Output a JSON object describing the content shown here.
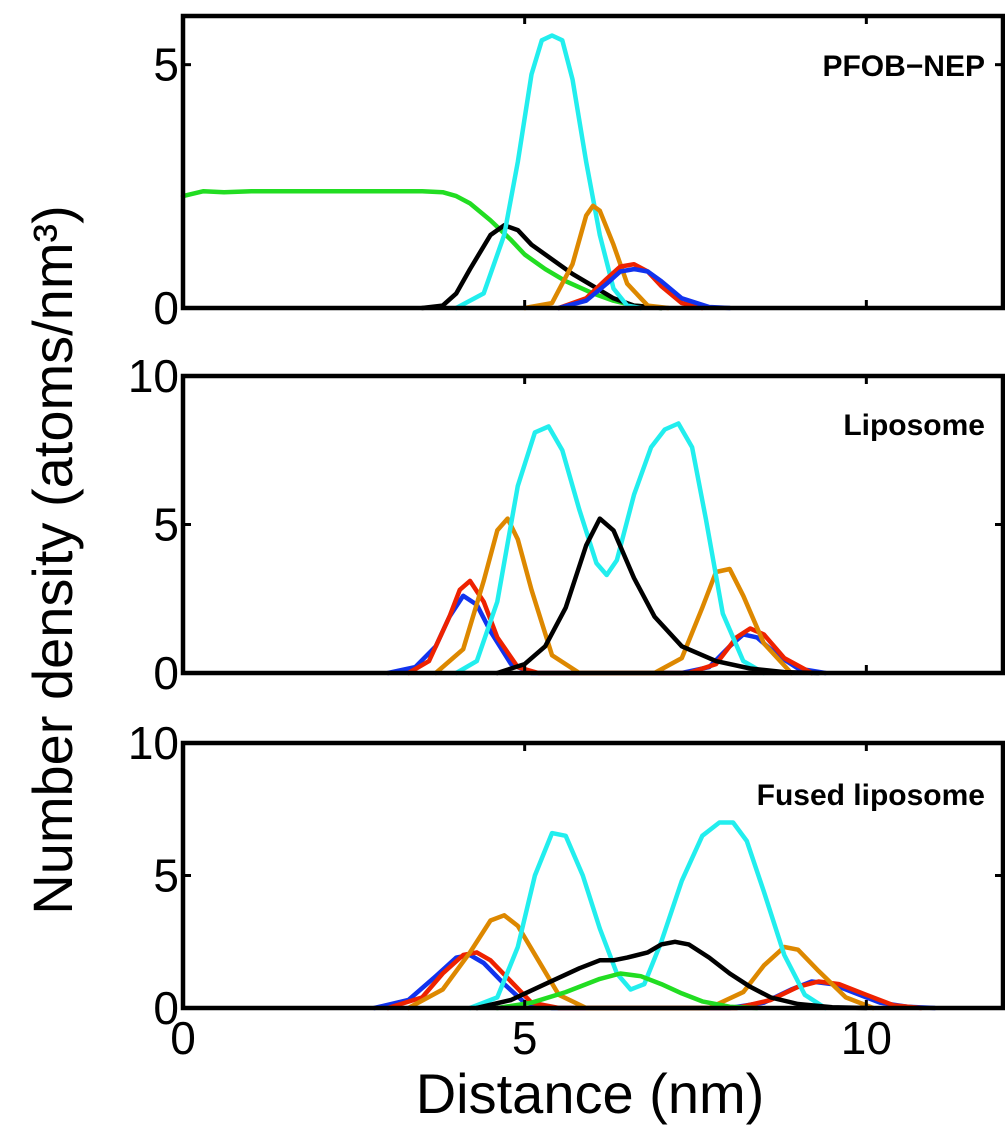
{
  "chart_data": {
    "type": "line",
    "shared_xlabel": "Distance (nm)",
    "shared_ylabel": "Number density (atoms/nm³)",
    "xlim": [
      0,
      12
    ],
    "xticks": [
      0,
      5,
      10
    ],
    "grid": false,
    "colors": {
      "green": "#22dd22",
      "black": "#000000",
      "cyan": "#22eeee",
      "orange": "#dd8800",
      "red": "#ee2200",
      "blue": "#1133ee"
    },
    "panels": [
      {
        "title": "PFOB−NEP",
        "ylim": [
          0,
          6
        ],
        "yticks": [
          0,
          5
        ],
        "series": [
          {
            "color_key": "green",
            "x": [
              0,
              0.3,
              0.6,
              1,
              2,
              3,
              3.5,
              3.8,
              4,
              4.2,
              4.5,
              4.8,
              5,
              5.3,
              5.6,
              6,
              6.3,
              6.6,
              7
            ],
            "y": [
              2.3,
              2.4,
              2.38,
              2.4,
              2.4,
              2.4,
              2.4,
              2.38,
              2.3,
              2.15,
              1.8,
              1.4,
              1.1,
              0.8,
              0.55,
              0.3,
              0.15,
              0.05,
              0
            ]
          },
          {
            "color_key": "black",
            "x": [
              3.5,
              3.8,
              4,
              4.2,
              4.5,
              4.7,
              4.9,
              5.1,
              5.4,
              5.7,
              6,
              6.3,
              6.6,
              7
            ],
            "y": [
              0,
              0.05,
              0.3,
              0.8,
              1.5,
              1.7,
              1.6,
              1.3,
              1,
              0.7,
              0.45,
              0.2,
              0.05,
              0
            ]
          },
          {
            "color_key": "cyan",
            "x": [
              4,
              4.4,
              4.7,
              4.9,
              5.1,
              5.25,
              5.4,
              5.55,
              5.7,
              5.9,
              6.1,
              6.3,
              6.5,
              6.7
            ],
            "y": [
              0,
              0.3,
              1.5,
              3,
              4.8,
              5.5,
              5.6,
              5.5,
              4.7,
              3,
              1.5,
              0.4,
              0.05,
              0
            ]
          },
          {
            "color_key": "orange",
            "x": [
              5,
              5.4,
              5.7,
              5.9,
              6,
              6.1,
              6.3,
              6.5,
              6.8,
              7.1
            ],
            "y": [
              0,
              0.1,
              0.9,
              1.9,
              2.1,
              2.0,
              1.3,
              0.5,
              0.05,
              0
            ]
          },
          {
            "color_key": "red",
            "x": [
              5.5,
              5.9,
              6.2,
              6.4,
              6.6,
              6.8,
              7,
              7.3,
              7.6
            ],
            "y": [
              0,
              0.2,
              0.6,
              0.85,
              0.9,
              0.75,
              0.45,
              0.1,
              0
            ]
          },
          {
            "color_key": "blue",
            "x": [
              5.5,
              5.9,
              6.2,
              6.4,
              6.6,
              6.8,
              7,
              7.3,
              7.7,
              8
            ],
            "y": [
              0,
              0.15,
              0.5,
              0.75,
              0.8,
              0.75,
              0.55,
              0.2,
              0.02,
              0
            ]
          }
        ]
      },
      {
        "title": "Liposome",
        "ylim": [
          0,
          10
        ],
        "yticks": [
          0,
          5,
          10
        ],
        "series": [
          {
            "color_key": "blue",
            "x": [
              3,
              3.4,
              3.7,
              3.9,
              4.1,
              4.3,
              4.5,
              4.8,
              5.1,
              7.3,
              7.7,
              8,
              8.2,
              8.4,
              8.7,
              9,
              9.4
            ],
            "y": [
              0,
              0.2,
              0.9,
              1.9,
              2.6,
              2.3,
              1.4,
              0.3,
              0,
              0,
              0.2,
              0.9,
              1.3,
              1.2,
              0.6,
              0.15,
              0
            ]
          },
          {
            "color_key": "red",
            "x": [
              3.3,
              3.6,
              3.9,
              4.05,
              4.2,
              4.4,
              4.6,
              4.9,
              5.2,
              7.4,
              7.8,
              8.1,
              8.3,
              8.5,
              8.8,
              9.2
            ],
            "y": [
              0,
              0.4,
              1.9,
              2.8,
              3.1,
              2.4,
              1.2,
              0.2,
              0,
              0,
              0.3,
              1.2,
              1.5,
              1.3,
              0.5,
              0
            ]
          },
          {
            "color_key": "orange",
            "x": [
              3.7,
              4.1,
              4.4,
              4.6,
              4.75,
              4.9,
              5.1,
              5.4,
              5.8,
              6.9,
              7.3,
              7.6,
              7.8,
              8,
              8.2,
              8.5,
              8.9
            ],
            "y": [
              0,
              0.8,
              3.1,
              4.8,
              5.2,
              4.5,
              2.8,
              0.6,
              0,
              0,
              0.5,
              2.2,
              3.4,
              3.5,
              2.6,
              1,
              0
            ]
          },
          {
            "color_key": "cyan",
            "x": [
              4,
              4.3,
              4.6,
              4.9,
              5.15,
              5.35,
              5.55,
              5.8,
              6.05,
              6.2,
              6.35,
              6.6,
              6.85,
              7.05,
              7.25,
              7.45,
              7.65,
              7.9,
              8.2,
              8.5
            ],
            "y": [
              0,
              0.4,
              2.4,
              6.3,
              8.1,
              8.3,
              7.5,
              5.5,
              3.7,
              3.3,
              3.8,
              6.0,
              7.6,
              8.2,
              8.4,
              7.6,
              5.2,
              2,
              0.4,
              0
            ]
          },
          {
            "color_key": "black",
            "x": [
              4.6,
              5,
              5.3,
              5.6,
              5.9,
              6.1,
              6.3,
              6.6,
              6.9,
              7.3,
              7.8,
              8.3,
              8.8,
              9.3
            ],
            "y": [
              0,
              0.3,
              0.9,
              2.2,
              4.3,
              5.2,
              4.8,
              3.2,
              1.9,
              0.9,
              0.4,
              0.15,
              0.03,
              0
            ]
          }
        ]
      },
      {
        "title": "Fused liposome",
        "ylim": [
          0,
          10
        ],
        "yticks": [
          0,
          5,
          10
        ],
        "series": [
          {
            "color_key": "blue",
            "x": [
              2.8,
              3.3,
              3.7,
              4,
              4.2,
              4.4,
              4.7,
              5,
              5.4,
              8,
              8.5,
              8.9,
              9.2,
              9.5,
              9.8,
              10.2,
              10.6,
              11
            ],
            "y": [
              0,
              0.3,
              1.2,
              1.9,
              2.0,
              1.7,
              0.9,
              0.2,
              0,
              0,
              0.2,
              0.7,
              1.0,
              0.9,
              0.6,
              0.2,
              0.05,
              0
            ]
          },
          {
            "color_key": "red",
            "x": [
              3,
              3.5,
              3.8,
              4.1,
              4.3,
              4.5,
              4.8,
              5.1,
              5.5,
              8.1,
              8.6,
              9,
              9.3,
              9.6,
              10,
              10.4,
              10.8
            ],
            "y": [
              0,
              0.4,
              1.3,
              2.0,
              2.1,
              1.8,
              1.0,
              0.2,
              0,
              0,
              0.3,
              0.8,
              1.0,
              0.9,
              0.5,
              0.1,
              0
            ]
          },
          {
            "color_key": "orange",
            "x": [
              3.3,
              3.8,
              4.2,
              4.5,
              4.7,
              4.9,
              5.2,
              5.5,
              5.9,
              7.7,
              8.2,
              8.5,
              8.8,
              9,
              9.3,
              9.7,
              10.1
            ],
            "y": [
              0,
              0.7,
              2.1,
              3.3,
              3.5,
              3.1,
              1.8,
              0.5,
              0,
              0,
              0.6,
              1.6,
              2.3,
              2.2,
              1.4,
              0.4,
              0
            ]
          },
          {
            "color_key": "cyan",
            "x": [
              4.2,
              4.6,
              4.9,
              5.15,
              5.4,
              5.6,
              5.85,
              6.1,
              6.35,
              6.55,
              6.75,
              7,
              7.3,
              7.6,
              7.85,
              8.05,
              8.25,
              8.5,
              8.8,
              9.1,
              9.4
            ],
            "y": [
              0,
              0.4,
              2.3,
              5.0,
              6.6,
              6.5,
              5.0,
              3.0,
              1.3,
              0.7,
              0.9,
              2.5,
              4.8,
              6.5,
              7.0,
              7.0,
              6.3,
              4.4,
              2,
              0.5,
              0
            ]
          },
          {
            "color_key": "green",
            "x": [
              4.6,
              5.1,
              5.6,
              6.1,
              6.4,
              6.7,
              7,
              7.3,
              7.6,
              8,
              8.4
            ],
            "y": [
              0,
              0.2,
              0.6,
              1.1,
              1.3,
              1.2,
              0.9,
              0.55,
              0.25,
              0.05,
              0
            ]
          },
          {
            "color_key": "black",
            "x": [
              4.3,
              4.8,
              5.3,
              5.8,
              6.1,
              6.3,
              6.5,
              6.8,
              7,
              7.2,
              7.4,
              7.7,
              8,
              8.3,
              8.6,
              9,
              9.5,
              10
            ],
            "y": [
              0,
              0.3,
              0.9,
              1.5,
              1.8,
              1.8,
              1.9,
              2.1,
              2.4,
              2.5,
              2.4,
              1.9,
              1.3,
              0.8,
              0.4,
              0.15,
              0.03,
              0
            ]
          }
        ]
      }
    ]
  }
}
